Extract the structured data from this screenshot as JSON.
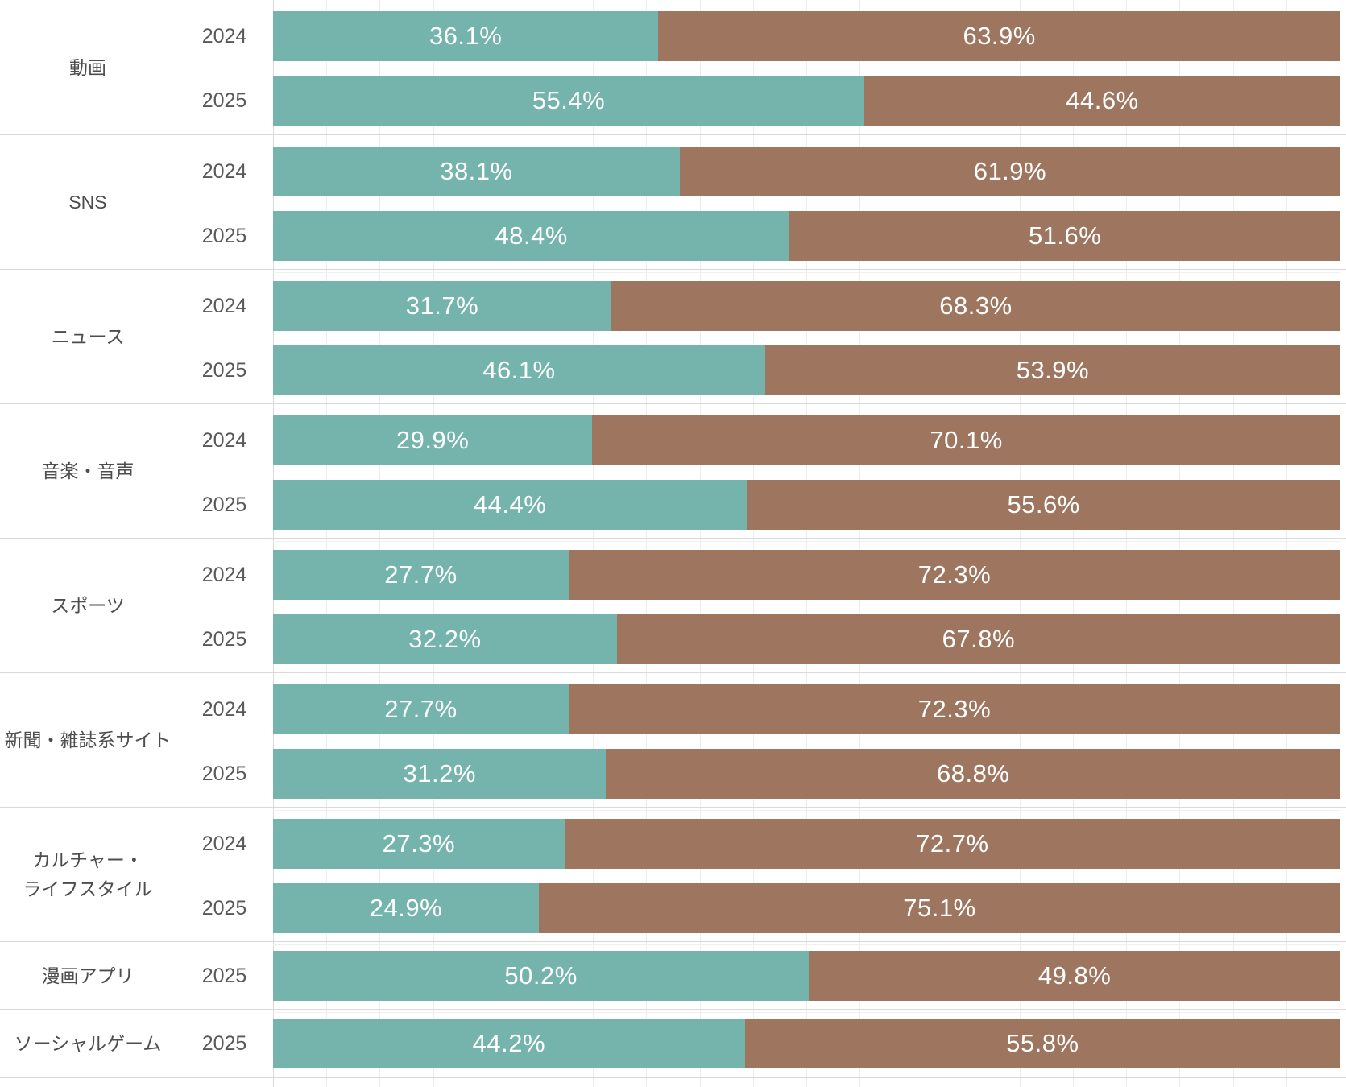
{
  "chart": {
    "colors": {
      "teal": "#75B4AD",
      "brown": "#9E7660",
      "grid": "#EDEDED",
      "row_border": "#D9D9D9",
      "category_text": "#4D4D4D",
      "year_text": "#595959",
      "value_text": "#FFFFFF"
    }
  },
  "chart_data": {
    "type": "bar",
    "orientation": "horizontal",
    "stacked": true,
    "value_unit": "percent",
    "axis_min": 0,
    "axis_max": 100,
    "gridline_step": 5,
    "legend": "none",
    "series_keys": [
      "teal",
      "brown"
    ],
    "groups": [
      {
        "category": "動画",
        "rows": [
          {
            "year": "2024",
            "teal": 36.1,
            "brown": 63.9
          },
          {
            "year": "2025",
            "teal": 55.4,
            "brown": 44.6
          }
        ]
      },
      {
        "category": "SNS",
        "rows": [
          {
            "year": "2024",
            "teal": 38.1,
            "brown": 61.9
          },
          {
            "year": "2025",
            "teal": 48.4,
            "brown": 51.6
          }
        ]
      },
      {
        "category": "ニュース",
        "rows": [
          {
            "year": "2024",
            "teal": 31.7,
            "brown": 68.3
          },
          {
            "year": "2025",
            "teal": 46.1,
            "brown": 53.9
          }
        ]
      },
      {
        "category": "音楽・音声",
        "rows": [
          {
            "year": "2024",
            "teal": 29.9,
            "brown": 70.1
          },
          {
            "year": "2025",
            "teal": 44.4,
            "brown": 55.6
          }
        ]
      },
      {
        "category": "スポーツ",
        "rows": [
          {
            "year": "2024",
            "teal": 27.7,
            "brown": 72.3
          },
          {
            "year": "2025",
            "teal": 32.2,
            "brown": 67.8
          }
        ]
      },
      {
        "category": "新聞・雑誌系サイト",
        "rows": [
          {
            "year": "2024",
            "teal": 27.7,
            "brown": 72.3
          },
          {
            "year": "2025",
            "teal": 31.2,
            "brown": 68.8
          }
        ]
      },
      {
        "category": "カルチャー・\nライフスタイル",
        "rows": [
          {
            "year": "2024",
            "teal": 27.3,
            "brown": 72.7
          },
          {
            "year": "2025",
            "teal": 24.9,
            "brown": 75.1
          }
        ]
      },
      {
        "category": "漫画アプリ",
        "rows": [
          {
            "year": "2025",
            "teal": 50.2,
            "brown": 49.8
          }
        ]
      },
      {
        "category": "ソーシャルゲーム",
        "rows": [
          {
            "year": "2025",
            "teal": 44.2,
            "brown": 55.8
          }
        ]
      }
    ]
  }
}
